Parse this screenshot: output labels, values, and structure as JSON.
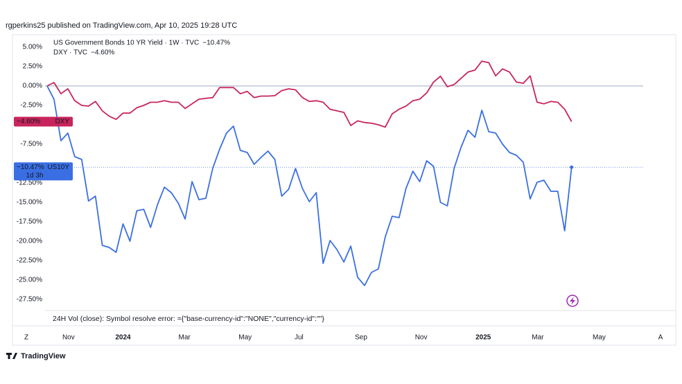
{
  "header": "rgperkins25 published on TradingView.com, Apr 10, 2025 19:28 UTC",
  "status_text": "24H Vol (close): Symbol resolve error: ={\"base-currency-id\":\"NONE\",\"currency-id\":\"\"}",
  "left_button": "Z",
  "right_button": "A",
  "logo": "TradingView",
  "chart_data": {
    "type": "line",
    "x": [
      0,
      1,
      2,
      3,
      4,
      5,
      6,
      7,
      8,
      9,
      10,
      11,
      12,
      13,
      14,
      15,
      16,
      17,
      18,
      19,
      20,
      21,
      22,
      23,
      24,
      25,
      26,
      27,
      28,
      29,
      30,
      31,
      32,
      33,
      34,
      35,
      36,
      37,
      38,
      39,
      40,
      41,
      42,
      43,
      44,
      45,
      46,
      47,
      48,
      49,
      50,
      51,
      52,
      53,
      54,
      55,
      56,
      57,
      58,
      59,
      60,
      61,
      62,
      63,
      64,
      65,
      66,
      67,
      68,
      69,
      70,
      71,
      72,
      73,
      74,
      75,
      76
    ],
    "xlim": [
      -0.3,
      91.1
    ],
    "xticks": [
      {
        "value": 3.1,
        "label": "Nov"
      },
      {
        "value": 11.0,
        "label": "2024"
      },
      {
        "value": 19.9,
        "label": "Mar"
      },
      {
        "value": 28.7,
        "label": "May"
      },
      {
        "value": 36.5,
        "label": "Jul"
      },
      {
        "value": 45.5,
        "label": "Sep"
      },
      {
        "value": 54.2,
        "label": "Nov"
      },
      {
        "value": 63.2,
        "label": "2025"
      },
      {
        "value": 71.1,
        "label": "Mar"
      },
      {
        "value": 80.0,
        "label": "May"
      }
    ],
    "ylim": [
      -28.93,
      6.61
    ],
    "yticks": [
      {
        "value": 5,
        "label": "5.00%"
      },
      {
        "value": 2.5,
        "label": "2.50%"
      },
      {
        "value": 0,
        "label": "0.00%"
      },
      {
        "value": -2.5,
        "label": "-2.50%"
      },
      {
        "value": -7.5,
        "label": "-7.50%"
      },
      {
        "value": -12.5,
        "label": "-12.50%"
      },
      {
        "value": -15,
        "label": "-15.00%"
      },
      {
        "value": -17.5,
        "label": "-17.50%"
      },
      {
        "value": -20,
        "label": "-20.00%"
      },
      {
        "value": -22.5,
        "label": "-22.50%"
      },
      {
        "value": -25,
        "label": "-25.00%"
      },
      {
        "value": -27.5,
        "label": "-27.50%"
      }
    ],
    "series": [
      {
        "name": "US Government Bonds 10 YR Yield · 1W · TVC",
        "short_name": "US10Y",
        "countdown": "1d 3h",
        "color": "#3a6fe3",
        "values": [
          0,
          -1.7,
          -7.05,
          -6.07,
          -9.11,
          -9.46,
          -14.82,
          -14.2,
          -20.54,
          -20.8,
          -21.43,
          -17.77,
          -20,
          -16.07,
          -15.89,
          -18.21,
          -15.27,
          -13.04,
          -13.75,
          -15.09,
          -17.14,
          -12.32,
          -14.64,
          -14.46,
          -10.63,
          -8.13,
          -6.07,
          -5.18,
          -8.3,
          -8.57,
          -10.09,
          -9.2,
          -8.39,
          -9.46,
          -14.2,
          -13.3,
          -10.63,
          -13.21,
          -14.91,
          -13.75,
          -22.86,
          -19.91,
          -21.07,
          -22.68,
          -20.63,
          -24.64,
          -25.71,
          -24.02,
          -23.57,
          -19.46,
          -16.79,
          -16.96,
          -13.21,
          -10.98,
          -12.32,
          -9.64,
          -10.36,
          -15,
          -15.45,
          -10.54,
          -7.86,
          -5.71,
          -6.61,
          -3.13,
          -5.89,
          -6.07,
          -7.5,
          -8.57,
          -8.93,
          -9.82,
          -14.55,
          -12.41,
          -12.14,
          -13.57,
          -13.57,
          -18.66,
          -10.47
        ],
        "value_labels": [
          null,
          null,
          null,
          null,
          null,
          null,
          null,
          null,
          null,
          null,
          null,
          null,
          null,
          null,
          null,
          null,
          null,
          null,
          null,
          null,
          null,
          null,
          null,
          null,
          null,
          null,
          null,
          null,
          null,
          null,
          null,
          null,
          null,
          null,
          null,
          null,
          null,
          null,
          null,
          null,
          null,
          null,
          null,
          null,
          null,
          null,
          null,
          null,
          null,
          null,
          null,
          null,
          null,
          null,
          null,
          null,
          null,
          null,
          null,
          null,
          null,
          null,
          null,
          null,
          null,
          null,
          null,
          null,
          null,
          null,
          null,
          null,
          null,
          null,
          null,
          null,
          "−10.47%"
        ]
      },
      {
        "name": "DXY · TVC",
        "short_name": "DXY",
        "color": "#c8245c",
        "values": [
          0,
          0.45,
          -1.0,
          -0.36,
          -1.9,
          -2.5,
          -2.6,
          -2.0,
          -3.2,
          -3.9,
          -4.3,
          -3.5,
          -3.5,
          -2.8,
          -2.5,
          -2.1,
          -2.1,
          -1.9,
          -2.1,
          -2.1,
          -2.9,
          -2.3,
          -1.7,
          -1.6,
          -1.5,
          -0.2,
          -0.2,
          -0.2,
          -1.0,
          -0.7,
          -1.5,
          -1.3,
          -1.3,
          -1.25,
          -0.6,
          -0.36,
          -0.5,
          -1.5,
          -2.0,
          -1.9,
          -2.1,
          -3.0,
          -3.2,
          -3.4,
          -5.1,
          -4.5,
          -4.7,
          -4.8,
          -5.0,
          -5.3,
          -3.6,
          -3.0,
          -2.6,
          -1.9,
          -1.7,
          -0.9,
          0.5,
          1.25,
          -0.1,
          0.2,
          1.0,
          1.8,
          2.05,
          3.2,
          3.0,
          1.3,
          2.2,
          1.8,
          0.5,
          0.35,
          1.3,
          -2.1,
          -2.3,
          -2.0,
          -2.1,
          -3.0,
          -4.6
        ],
        "value_labels": [
          null,
          null,
          null,
          null,
          null,
          null,
          null,
          null,
          null,
          null,
          null,
          null,
          null,
          null,
          null,
          null,
          null,
          null,
          null,
          null,
          null,
          null,
          null,
          null,
          null,
          null,
          null,
          null,
          null,
          null,
          null,
          null,
          null,
          null,
          null,
          null,
          null,
          null,
          null,
          null,
          null,
          null,
          null,
          null,
          null,
          null,
          null,
          null,
          null,
          null,
          null,
          null,
          null,
          null,
          null,
          null,
          null,
          null,
          null,
          null,
          null,
          null,
          null,
          null,
          null,
          null,
          null,
          null,
          null,
          null,
          null,
          null,
          null,
          null,
          null,
          null,
          "−4.60%"
        ]
      }
    ]
  }
}
